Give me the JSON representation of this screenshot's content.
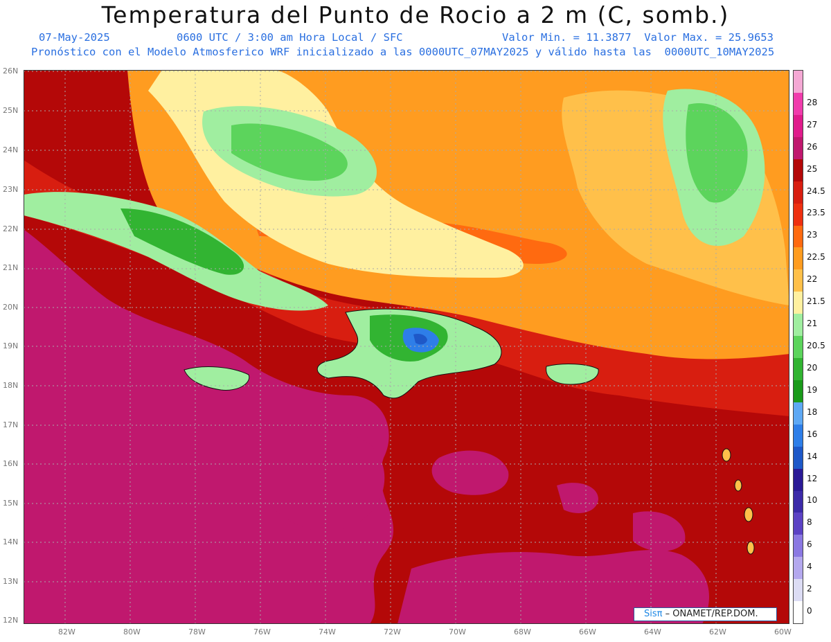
{
  "header": {
    "title": "Temperatura del Punto de Rocio a 2 m (C, somb.)",
    "date": "07-May-2025",
    "time": "0600 UTC / 3:00 am Hora Local / SFC",
    "minmax": "Valor Min. = 11.3877  Valor Max. = 25.9653",
    "model": "Pronóstico con el Modelo Atmosferico WRF inicializado a las 0000UTC_07MAY2025 y válido hasta las  0000UTC_10MAY2025"
  },
  "map": {
    "lat_labels": [
      "26N",
      "25N",
      "24N",
      "23N",
      "22N",
      "21N",
      "20N",
      "19N",
      "18N",
      "17N",
      "16N",
      "15N",
      "14N",
      "13N",
      "12N"
    ],
    "lon_labels": [
      "82W",
      "80W",
      "78W",
      "76W",
      "74W",
      "72W",
      "70W",
      "68W",
      "66W",
      "64W",
      "62W",
      "60W"
    ],
    "grid": true
  },
  "colorbar": {
    "levels": [
      "0",
      "2",
      "4",
      "6",
      "8",
      "10",
      "12",
      "14",
      "16",
      "18",
      "19",
      "20",
      "20.5",
      "21",
      "21.5",
      "22",
      "22.5",
      "23",
      "23.5",
      "24.5",
      "25",
      "26",
      "27",
      "28"
    ],
    "colors": [
      "#ffffff",
      "#dcdcf4",
      "#b4a8ee",
      "#8b78e2",
      "#5c42c4",
      "#3c2aa8",
      "#2a1a96",
      "#1e58c8",
      "#2e7ee8",
      "#5ea8f4",
      "#1a9a1a",
      "#32b432",
      "#5cd45c",
      "#a0eea0",
      "#fff0a0",
      "#ffc04a",
      "#ff9c20",
      "#ff6a10",
      "#ee3010",
      "#d81e10",
      "#b40808",
      "#c0186e",
      "#e01c8c",
      "#f03cac",
      "#f4a8d4"
    ]
  },
  "credit": {
    "brand": "Sisπ",
    "org": " – ONAMET/REP.DOM."
  }
}
